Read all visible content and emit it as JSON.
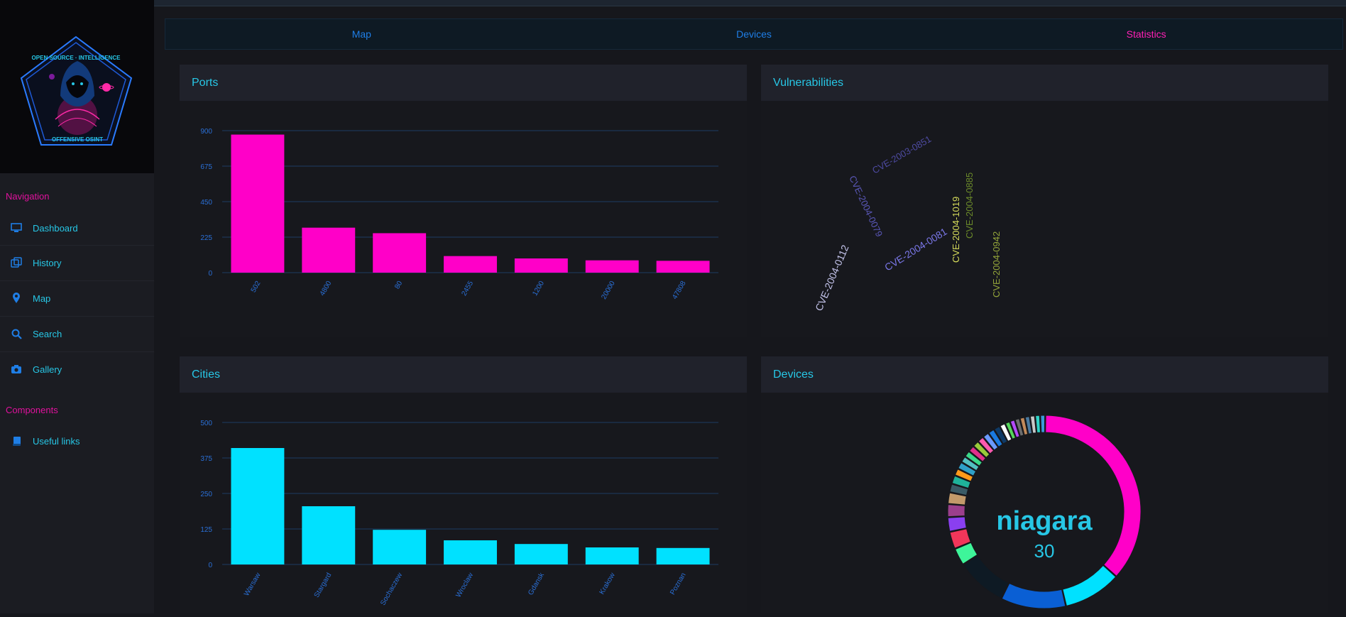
{
  "logo": {
    "arc_text_top": "OPEN SOURCE · INTELLIGENCE",
    "bottom_text": "OFFENSIVE OSINT"
  },
  "sidebar": {
    "section_navigation": "Navigation",
    "section_components": "Components",
    "items": [
      {
        "label": "Dashboard",
        "icon": "monitor-icon"
      },
      {
        "label": "History",
        "icon": "history-icon"
      },
      {
        "label": "Map",
        "icon": "map-pin-icon"
      },
      {
        "label": "Search",
        "icon": "search-icon"
      },
      {
        "label": "Gallery",
        "icon": "camera-icon"
      }
    ],
    "components_items": [
      {
        "label": "Useful links",
        "icon": "book-icon"
      }
    ]
  },
  "tabs": [
    {
      "label": "Map",
      "active": false
    },
    {
      "label": "Devices",
      "active": false
    },
    {
      "label": "Statistics",
      "active": true
    }
  ],
  "panels": {
    "ports": "Ports",
    "vulnerabilities": "Vulnerabilities",
    "cities": "Cities",
    "devices": "Devices"
  },
  "colors": {
    "accent_cyan": "#27c7e6",
    "accent_magenta": "#ff1fb5",
    "ports_bar": "#ff00c8",
    "cities_bar": "#00e1ff",
    "axis_text": "#2a6fd6",
    "grid": "#1c3b63"
  },
  "chart_data": [
    {
      "type": "bar",
      "title": "Ports",
      "categories": [
        "502",
        "4800",
        "80",
        "2455",
        "1200",
        "20000",
        "47808"
      ],
      "values": [
        875,
        285,
        250,
        105,
        90,
        78,
        75
      ],
      "ylim": [
        0,
        900
      ],
      "yticks": [
        0,
        225,
        450,
        675,
        900
      ],
      "grid": true
    },
    {
      "type": "bar",
      "title": "Cities",
      "categories": [
        "Warsaw",
        "Stargard",
        "Sochaczew",
        "Wroclaw",
        "Gdansk",
        "Krakow",
        "Poznan"
      ],
      "values": [
        410,
        205,
        122,
        85,
        72,
        60,
        58
      ],
      "ylim": [
        0,
        500
      ],
      "yticks": [
        0,
        125,
        250,
        375,
        500
      ],
      "grid": true
    },
    {
      "type": "wordcloud",
      "title": "Vulnerabilities",
      "words": [
        {
          "text": "CVE-2003-0851",
          "color": "#4d4aa0"
        },
        {
          "text": "CVE-2004-0079",
          "color": "#5a57b8"
        },
        {
          "text": "CVE-2004-0081",
          "color": "#7a77e8"
        },
        {
          "text": "CVE-2004-0112",
          "color": "#c6c6ee"
        },
        {
          "text": "CVE-2004-1019",
          "color": "#d6dc5a"
        },
        {
          "text": "CVE-2004-0885",
          "color": "#6b8a2a"
        },
        {
          "text": "CVE-2004-0942",
          "color": "#93a43a"
        }
      ]
    },
    {
      "type": "donut",
      "title": "Devices",
      "center_label": "niagara",
      "center_value": "30",
      "slices": [
        {
          "value": 30,
          "color": "#ff00c8"
        },
        {
          "value": 8,
          "color": "#00e1ff"
        },
        {
          "value": 9,
          "color": "#0a5fd4"
        },
        {
          "value": 7,
          "color": "#0e1a24"
        },
        {
          "value": 2.4,
          "color": "#3ef59a"
        },
        {
          "value": 2.4,
          "color": "#f2365a"
        },
        {
          "value": 2.0,
          "color": "#8a3ff0"
        },
        {
          "value": 1.8,
          "color": "#9b3f8c"
        },
        {
          "value": 1.6,
          "color": "#c29a6a"
        },
        {
          "value": 1.2,
          "color": "#3a5b66"
        },
        {
          "value": 1.2,
          "color": "#1fb39a"
        },
        {
          "value": 1.0,
          "color": "#ff9a1a"
        },
        {
          "value": 1.0,
          "color": "#2fa0c8"
        },
        {
          "value": 0.9,
          "color": "#52c0c0"
        },
        {
          "value": 0.9,
          "color": "#3ad88a"
        },
        {
          "value": 0.9,
          "color": "#e02f8c"
        },
        {
          "value": 0.9,
          "color": "#9aca3a"
        },
        {
          "value": 0.9,
          "color": "#ff5ab0"
        },
        {
          "value": 0.9,
          "color": "#6a9aff"
        },
        {
          "value": 0.9,
          "color": "#1a7ae0"
        },
        {
          "value": 0.9,
          "color": "#0f3a66"
        },
        {
          "value": 0.8,
          "color": "#ffffff"
        },
        {
          "value": 0.7,
          "color": "#55d65a"
        },
        {
          "value": 0.7,
          "color": "#b54aff"
        },
        {
          "value": 0.7,
          "color": "#6d6d6d"
        },
        {
          "value": 0.7,
          "color": "#c28a5a"
        },
        {
          "value": 0.7,
          "color": "#4a7aa0"
        },
        {
          "value": 0.7,
          "color": "#c8c8c8"
        },
        {
          "value": 0.7,
          "color": "#2ed4c8"
        },
        {
          "value": 0.7,
          "color": "#3a9ad8"
        }
      ]
    }
  ]
}
